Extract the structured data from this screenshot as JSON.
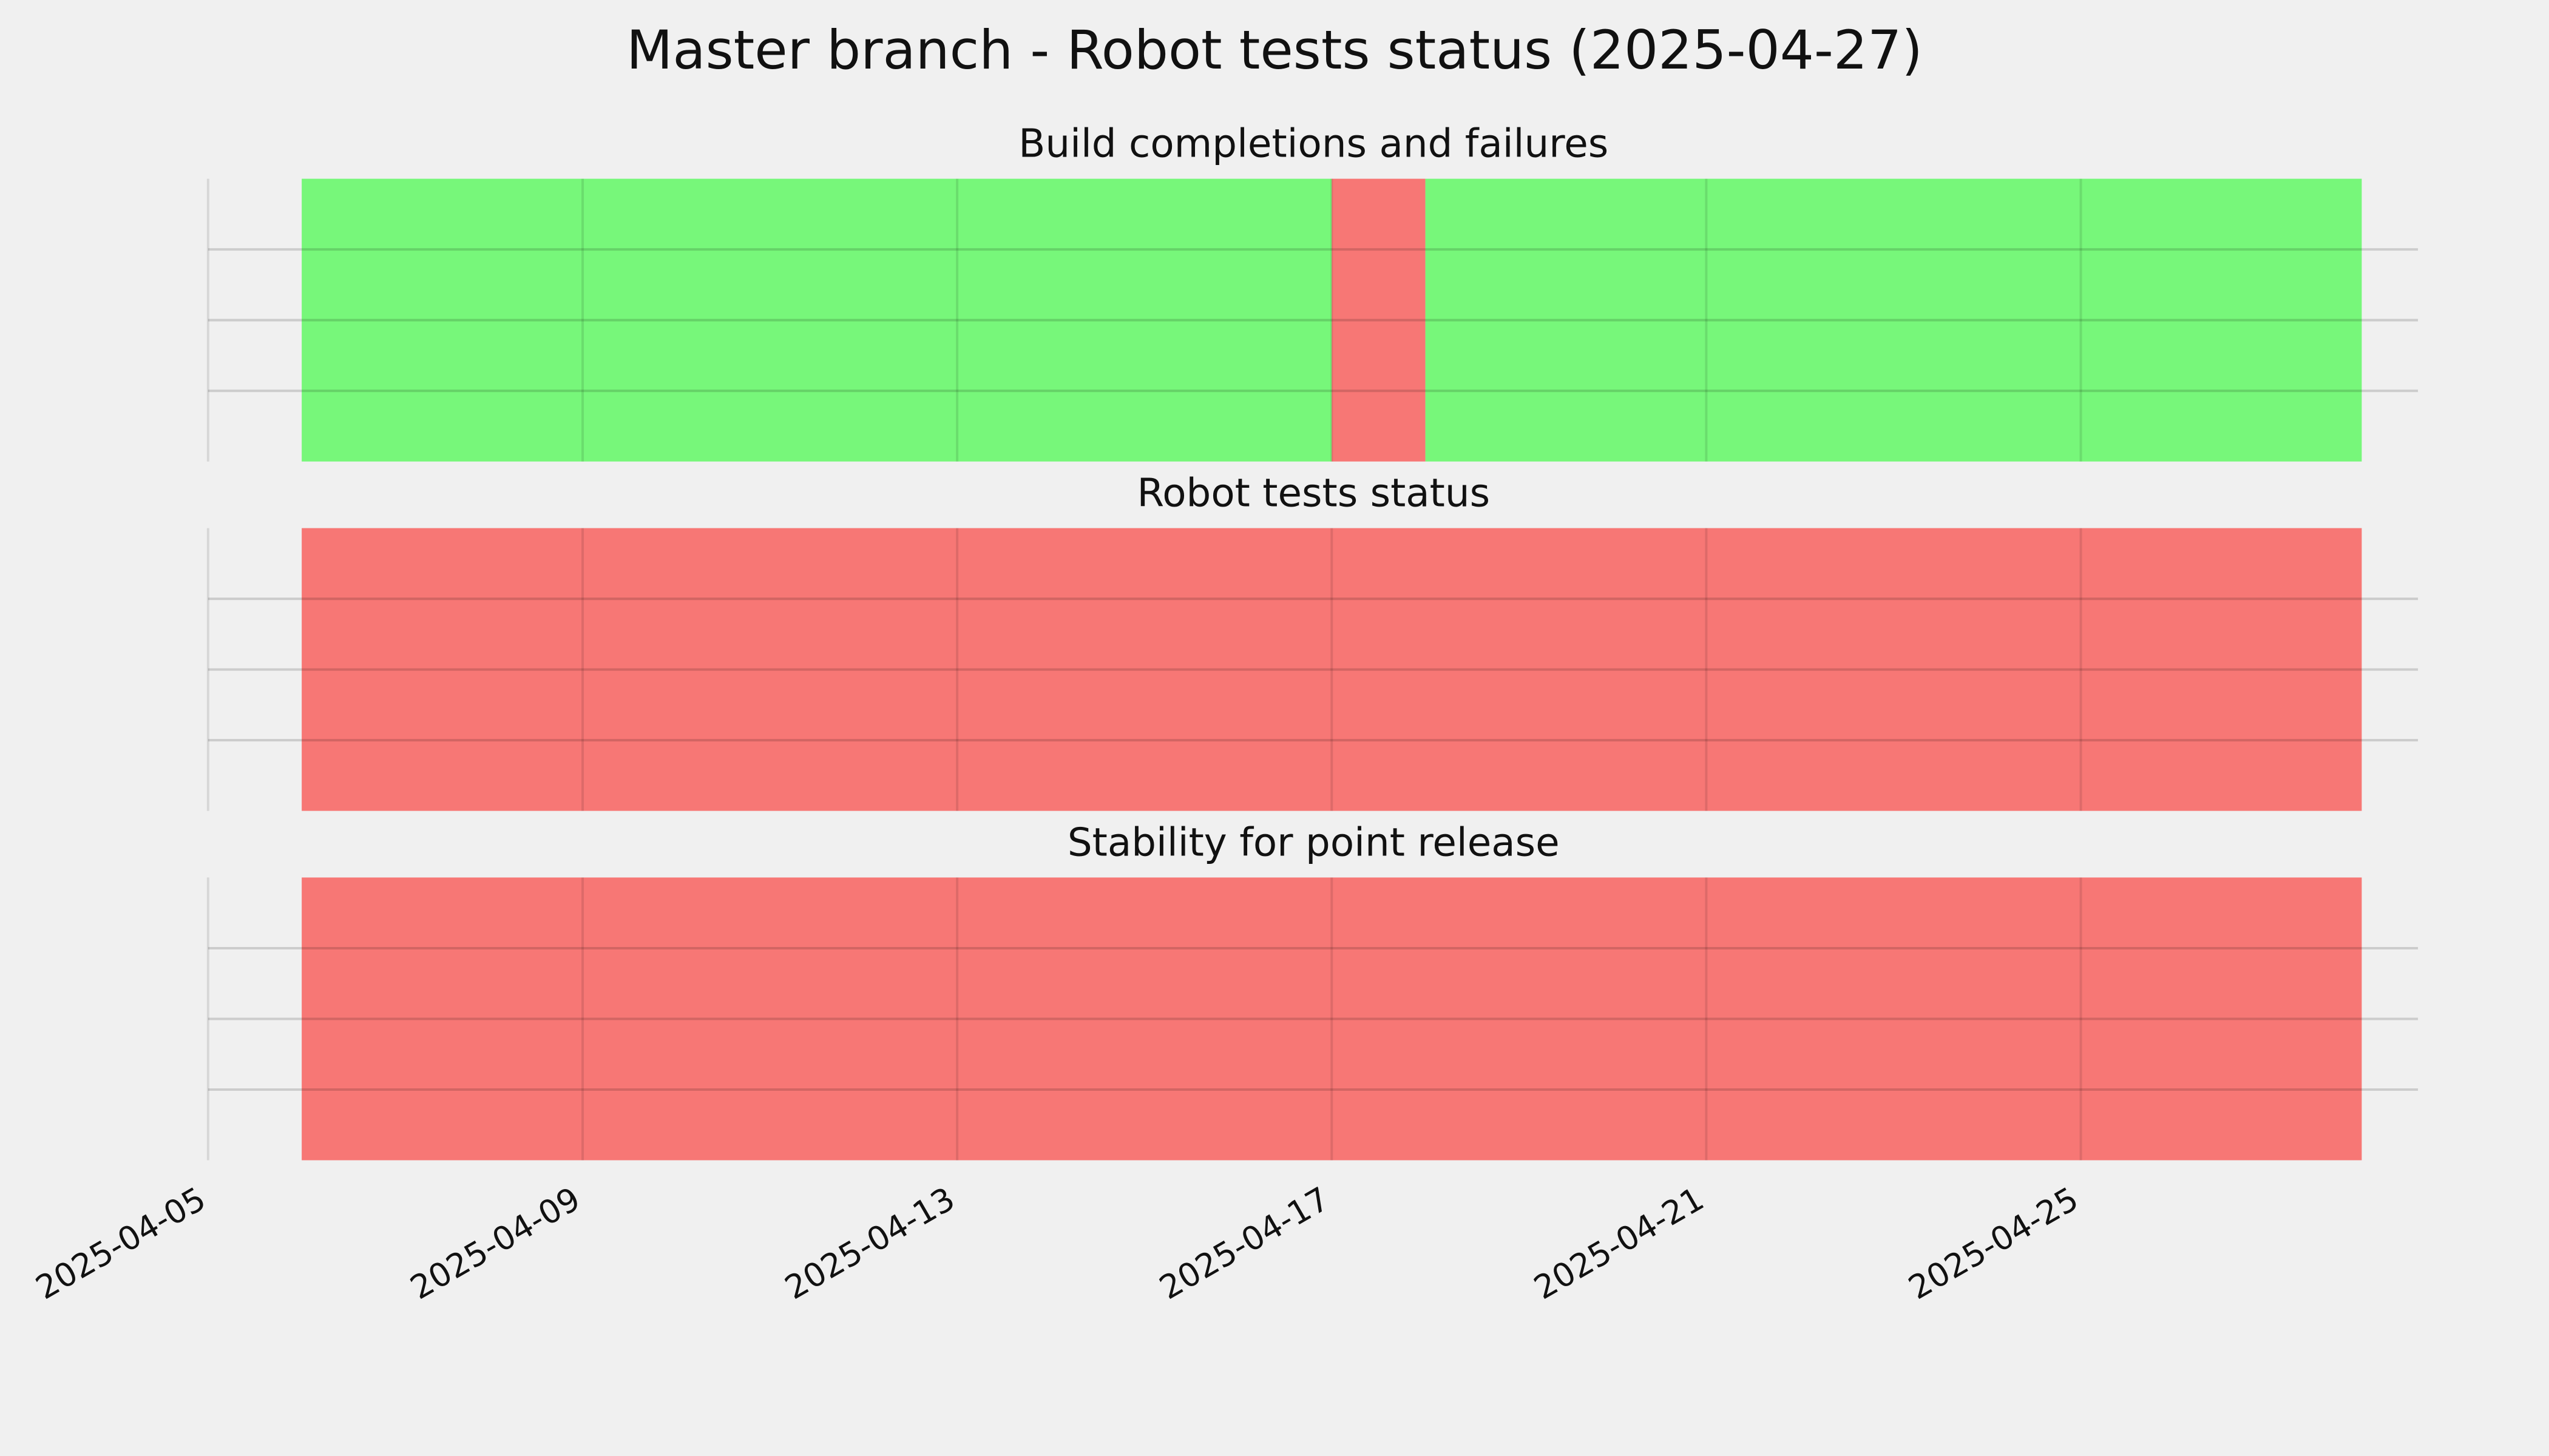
{
  "title": "Master branch - Robot tests status (2025-04-27)",
  "xlim": [
    "2025-04-05",
    "2025-04-29"
  ],
  "xticks": [
    "2025-04-05",
    "2025-04-09",
    "2025-04-13",
    "2025-04-17",
    "2025-04-21",
    "2025-04-25"
  ],
  "grid": true,
  "chart_data": [
    {
      "type": "timeline",
      "title": "Build completions and failures",
      "segments": [
        {
          "start": "2025-04-06",
          "end": "2025-04-17",
          "color": "#77f77a"
        },
        {
          "start": "2025-04-17",
          "end": "2025-04-18",
          "color": "#f77775"
        },
        {
          "start": "2025-04-18",
          "end": "2025-04-28",
          "color": "#77f77a"
        }
      ]
    },
    {
      "type": "timeline",
      "title": "Robot tests status",
      "segments": [
        {
          "start": "2025-04-06",
          "end": "2025-04-28",
          "color": "#f77775"
        }
      ]
    },
    {
      "type": "timeline",
      "title": "Stability for point release",
      "segments": [
        {
          "start": "2025-04-06",
          "end": "2025-04-28",
          "color": "#f77775"
        }
      ]
    }
  ]
}
